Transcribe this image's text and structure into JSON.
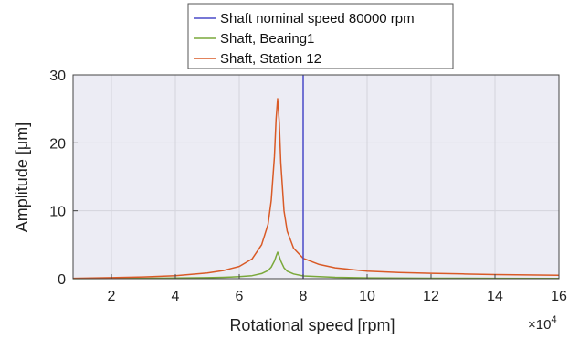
{
  "chart_data": {
    "type": "line",
    "xlabel": "Rotational speed [rpm]",
    "ylabel": "Amplitude [μm]",
    "x_exponent_label": "×10",
    "x_exponent_power": "4",
    "xlim": [
      0.8,
      16
    ],
    "ylim": [
      0,
      30
    ],
    "xticks": [
      2,
      4,
      6,
      8,
      10,
      12,
      14,
      16
    ],
    "yticks": [
      0,
      10,
      20,
      30
    ],
    "xtick_labels": [
      "2",
      "4",
      "6",
      "8",
      "10",
      "12",
      "14",
      "16"
    ],
    "ytick_labels": [
      "0",
      "10",
      "20",
      "30"
    ],
    "grid": true,
    "legend_position": "top-center",
    "nominal_speed": {
      "name": "Shaft nominal speed 80000 rpm",
      "x": 8,
      "color": "#4a4ac8"
    },
    "series": [
      {
        "name": "Shaft, Bearing1",
        "color": "#7aa83a",
        "x": [
          0.8,
          2,
          3,
          4,
          5,
          5.5,
          6,
          6.4,
          6.7,
          6.9,
          7.0,
          7.1,
          7.15,
          7.2,
          7.25,
          7.3,
          7.4,
          7.5,
          7.7,
          8,
          9,
          10,
          12,
          14,
          16
        ],
        "y": [
          0.02,
          0.04,
          0.06,
          0.09,
          0.15,
          0.2,
          0.3,
          0.45,
          0.75,
          1.2,
          1.7,
          2.6,
          3.3,
          3.9,
          3.3,
          2.6,
          1.6,
          1.1,
          0.7,
          0.4,
          0.2,
          0.12,
          0.07,
          0.05,
          0.04
        ]
      },
      {
        "name": "Shaft, Station 12",
        "color": "#d95a26",
        "x": [
          0.8,
          2,
          3,
          4,
          5,
          5.5,
          6,
          6.4,
          6.7,
          6.9,
          7.0,
          7.1,
          7.15,
          7.2,
          7.25,
          7.3,
          7.4,
          7.5,
          7.7,
          8,
          8.5,
          9,
          10,
          11,
          12,
          13,
          14,
          15,
          16
        ],
        "y": [
          0.05,
          0.15,
          0.25,
          0.45,
          0.85,
          1.2,
          1.8,
          2.9,
          5.0,
          8.0,
          11.5,
          18.0,
          23.5,
          26.5,
          23.0,
          17.0,
          10.0,
          7.0,
          4.5,
          3.0,
          2.1,
          1.6,
          1.1,
          0.9,
          0.8,
          0.7,
          0.6,
          0.55,
          0.5
        ]
      }
    ]
  }
}
